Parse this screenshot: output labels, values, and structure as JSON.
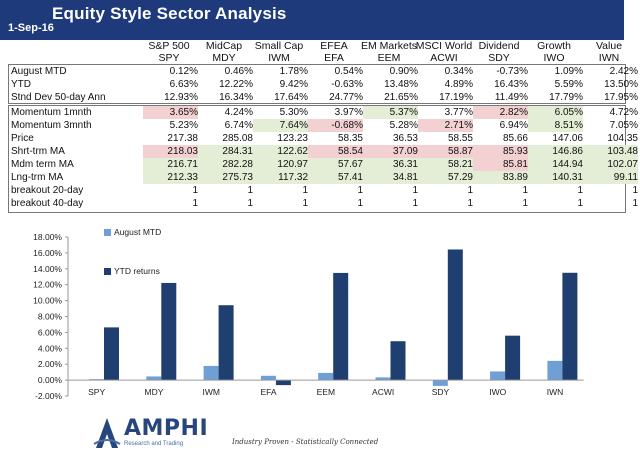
{
  "header": {
    "title": "Equity Style Sector Analysis",
    "date": "1-Sep-16"
  },
  "columns": [
    {
      "name": "S&P 500",
      "ticker": "SPY"
    },
    {
      "name": "MidCap",
      "ticker": "MDY"
    },
    {
      "name": "Small Cap",
      "ticker": "IWM"
    },
    {
      "name": "EFEA",
      "ticker": "EFA"
    },
    {
      "name": "EM Markets",
      "ticker": "EEM"
    },
    {
      "name": "MSCI World",
      "ticker": "ACWI"
    },
    {
      "name": "Dividend",
      "ticker": "SDY"
    },
    {
      "name": "Growth",
      "ticker": "IWO"
    },
    {
      "name": "Value",
      "ticker": "IWN"
    }
  ],
  "table_top": [
    {
      "label": "August MTD",
      "values": [
        "0.12%",
        "0.46%",
        "1.78%",
        "0.54%",
        "0.90%",
        "0.34%",
        "-0.73%",
        "1.09%",
        "2.42%"
      ],
      "highlights": [
        "",
        "",
        "",
        "",
        "",
        "",
        "",
        "",
        ""
      ]
    },
    {
      "label": "YTD",
      "values": [
        "6.63%",
        "12.22%",
        "9.42%",
        "-0.63%",
        "13.48%",
        "4.89%",
        "16.43%",
        "5.59%",
        "13.50%"
      ],
      "highlights": [
        "",
        "",
        "",
        "",
        "",
        "",
        "",
        "",
        ""
      ]
    },
    {
      "label": "Stnd Dev 50-day Ann",
      "values": [
        "12.93%",
        "16.34%",
        "17.64%",
        "24.77%",
        "21.65%",
        "17.19%",
        "11.49%",
        "17.79%",
        "17.95%"
      ],
      "highlights": [
        "",
        "",
        "",
        "",
        "",
        "",
        "",
        "",
        ""
      ]
    }
  ],
  "table_bottom": [
    {
      "label": "Momentum 1mnth",
      "values": [
        "3.65%",
        "4.24%",
        "5.30%",
        "3.97%",
        "5.37%",
        "3.77%",
        "2.82%",
        "6.05%",
        "4.72%"
      ],
      "highlights": [
        "red",
        "",
        "",
        "",
        "green",
        "",
        "red",
        "green",
        ""
      ]
    },
    {
      "label": "Momentum 3mnth",
      "values": [
        "5.23%",
        "6.74%",
        "7.64%",
        "-0.68%",
        "5.28%",
        "2.71%",
        "6.94%",
        "8.51%",
        "7.05%"
      ],
      "highlights": [
        "",
        "",
        "green",
        "red",
        "",
        "red",
        "",
        "green",
        ""
      ]
    },
    {
      "label": "Price",
      "values": [
        "217.38",
        "285.08",
        "123.23",
        "58.35",
        "36.53",
        "58.55",
        "85.66",
        "147.06",
        "104.35"
      ],
      "highlights": [
        "",
        "",
        "",
        "",
        "",
        "",
        "",
        "",
        ""
      ]
    },
    {
      "label": "Shrt-trm MA",
      "values": [
        "218.03",
        "284.31",
        "122.62",
        "58.54",
        "37.09",
        "58.87",
        "85.93",
        "146.86",
        "103.48"
      ],
      "highlights": [
        "red",
        "green",
        "green",
        "red",
        "red",
        "red",
        "red",
        "green",
        "green"
      ]
    },
    {
      "label": "Mdm term MA",
      "values": [
        "216.71",
        "282.28",
        "120.97",
        "57.67",
        "36.31",
        "58.21",
        "85.81",
        "144.94",
        "102.07"
      ],
      "highlights": [
        "green",
        "green",
        "green",
        "green",
        "green",
        "green",
        "red",
        "green",
        "green"
      ]
    },
    {
      "label": "Lng-trm MA",
      "values": [
        "212.33",
        "275.73",
        "117.32",
        "57.41",
        "34.81",
        "57.29",
        "83.89",
        "140.31",
        "99.11"
      ],
      "highlights": [
        "green",
        "green",
        "green",
        "green",
        "green",
        "green",
        "green",
        "green",
        "green"
      ]
    },
    {
      "label": "breakout 20-day",
      "values": [
        "1",
        "1",
        "1",
        "1",
        "1",
        "1",
        "1",
        "1",
        "1"
      ],
      "highlights": [
        "",
        "",
        "",
        "",
        "",
        "",
        "",
        "",
        ""
      ]
    },
    {
      "label": "breakout 40-day",
      "values": [
        "1",
        "1",
        "1",
        "1",
        "1",
        "1",
        "1",
        "1",
        "1"
      ],
      "highlights": [
        "",
        "",
        "",
        "",
        "",
        "",
        "",
        "",
        ""
      ]
    }
  ],
  "colors": {
    "header_bg": "#1f3a7a",
    "mtd": "#6f9fd4",
    "ytd": "#1f3f70",
    "red_cell": "#f3d1d2",
    "green_cell": "#e4edd5"
  },
  "chart_data": {
    "type": "bar",
    "categories": [
      "SPY",
      "MDY",
      "IWM",
      "EFA",
      "EEM",
      "ACWI",
      "SDY",
      "IWO",
      "IWN"
    ],
    "series": [
      {
        "name": "August MTD",
        "values": [
          0.12,
          0.46,
          1.78,
          0.54,
          0.9,
          0.34,
          -0.73,
          1.09,
          2.42
        ]
      },
      {
        "name": "YTD returns",
        "values": [
          6.63,
          12.22,
          9.42,
          -0.63,
          13.48,
          4.89,
          16.43,
          5.59,
          13.5
        ]
      }
    ],
    "ylim": [
      -2,
      18
    ],
    "yticks": [
      "-2.00%",
      "0.00%",
      "2.00%",
      "4.00%",
      "6.00%",
      "8.00%",
      "10.00%",
      "12.00%",
      "14.00%",
      "16.00%",
      "18.00%"
    ],
    "grid": false,
    "legend": "top-left"
  },
  "footer": {
    "brand": "AMPHI",
    "brand_sub": "Research and Trading",
    "tagline": "Industry Proven - Statistically Connected"
  }
}
